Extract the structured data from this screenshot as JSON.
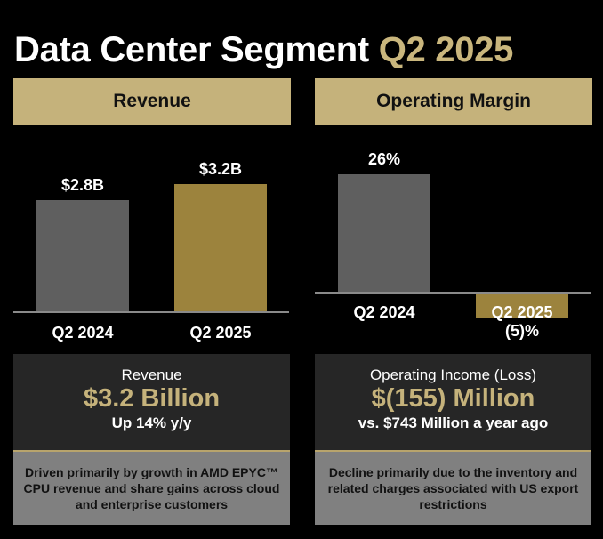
{
  "title": {
    "main": "Data Center Segment",
    "period": "Q2 2025"
  },
  "colors": {
    "gold": "#c5b27b",
    "bar_gold": "#9c833d",
    "bar_grey": "#5f5f5f"
  },
  "chart_data": [
    {
      "type": "bar",
      "title": "Revenue",
      "categories": [
        "Q2 2024",
        "Q2 2025"
      ],
      "values": [
        2.8,
        3.2
      ],
      "labels": [
        "$2.8B",
        "$3.2B"
      ],
      "unit": "$B"
    },
    {
      "type": "bar",
      "title": "Operating Margin",
      "categories": [
        "Q2 2024",
        "Q2 2025"
      ],
      "values": [
        26,
        -5
      ],
      "labels": [
        "26%",
        "(5)%"
      ],
      "unit": "%"
    }
  ],
  "summary": [
    {
      "label": "Revenue",
      "value": "$3.2 Billion",
      "sub": "Up 14% y/y",
      "note": "Driven primarily by growth in AMD EPYC™ CPU revenue and share gains across cloud and enterprise customers"
    },
    {
      "label": "Operating Income (Loss)",
      "value": "$(155) Million",
      "sub": "vs. $743 Million a year ago",
      "note": "Decline primarily due to the inventory and related charges associated with US export restrictions"
    }
  ]
}
